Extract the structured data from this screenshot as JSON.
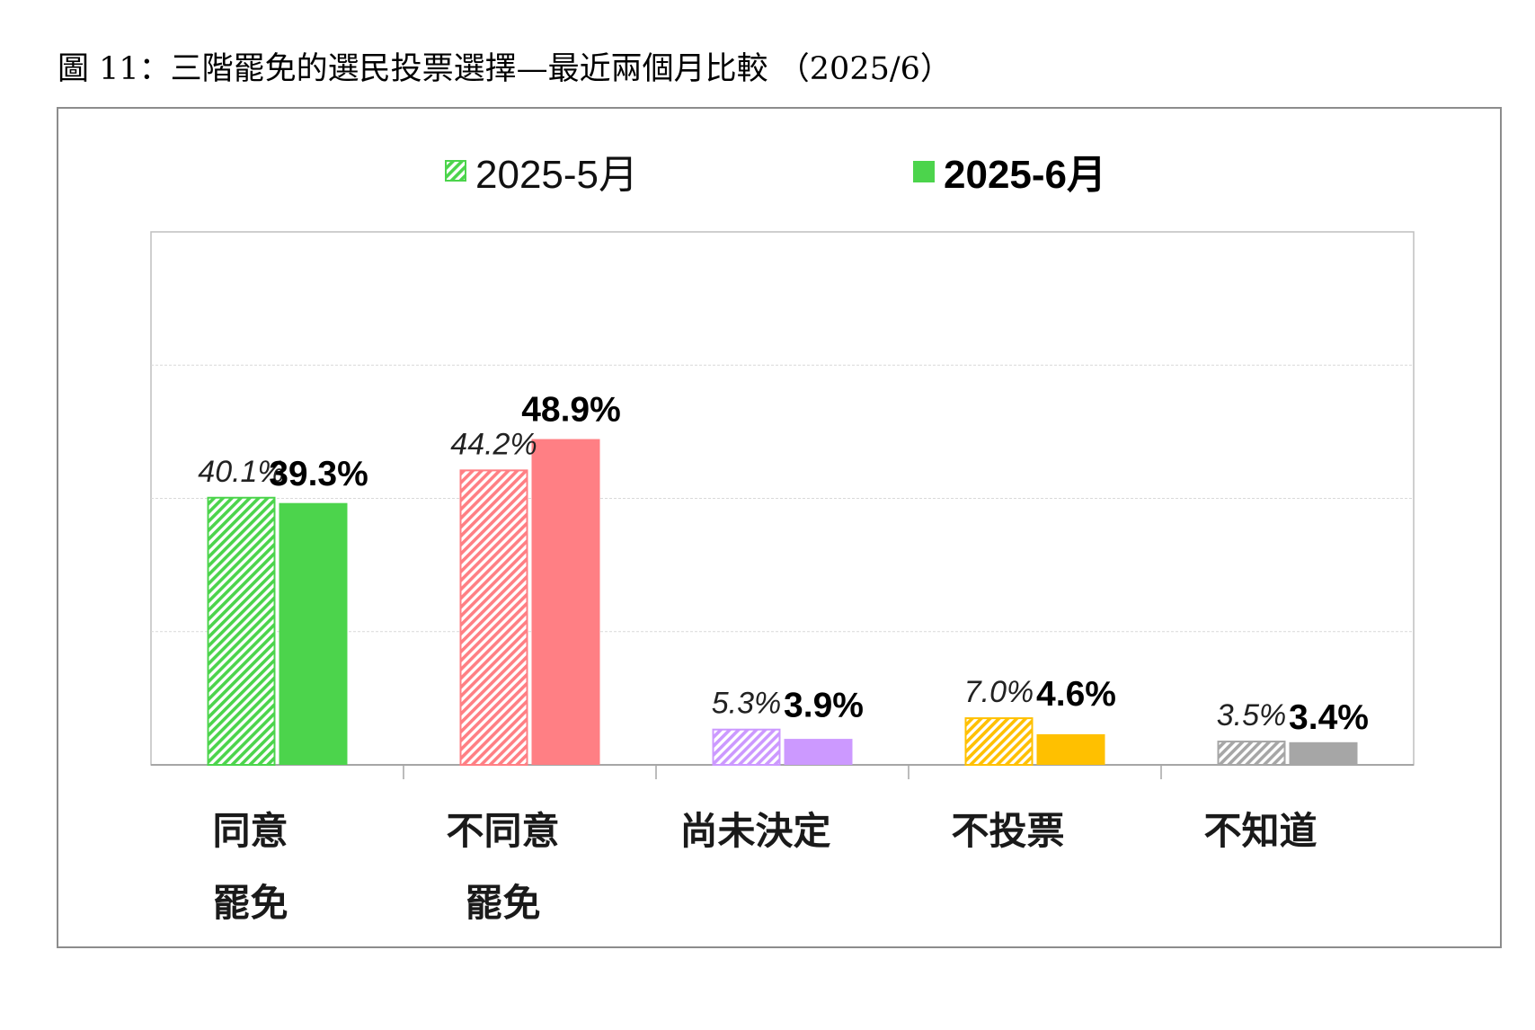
{
  "figure_title": "圖 11：三階罷免的選民投票選擇—最近兩個月比較 （2025/6）",
  "chart_data": {
    "type": "bar",
    "categories": [
      [
        "同意",
        "罷免"
      ],
      [
        "不同意",
        "罷免"
      ],
      [
        "尚未決定"
      ],
      [
        "不投票"
      ],
      [
        "不知道"
      ]
    ],
    "series": [
      {
        "name": "2025-5月",
        "values": [
          40.1,
          44.2,
          5.3,
          7.0,
          3.5
        ],
        "labels": [
          "40.1%",
          "44.2%",
          "5.3%",
          "7.0%",
          "3.5%"
        ],
        "style": "hatched"
      },
      {
        "name": "2025-6月",
        "values": [
          39.3,
          48.9,
          3.9,
          4.6,
          3.4
        ],
        "labels": [
          "39.3%",
          "48.9%",
          "3.9%",
          "4.6%",
          "3.4%"
        ],
        "style": "solid"
      }
    ],
    "category_colors": [
      "#4cd44c",
      "#ff7f84",
      "#cc99ff",
      "#ffc000",
      "#a6a6a6"
    ],
    "legend_colors": [
      "#4cd44c",
      "#4cd44c"
    ],
    "ylim": [
      0,
      80
    ],
    "gridlines": [
      20,
      40,
      60
    ],
    "grid": true,
    "legend_position": "top-center",
    "title": "",
    "xlabel": "",
    "ylabel": ""
  }
}
